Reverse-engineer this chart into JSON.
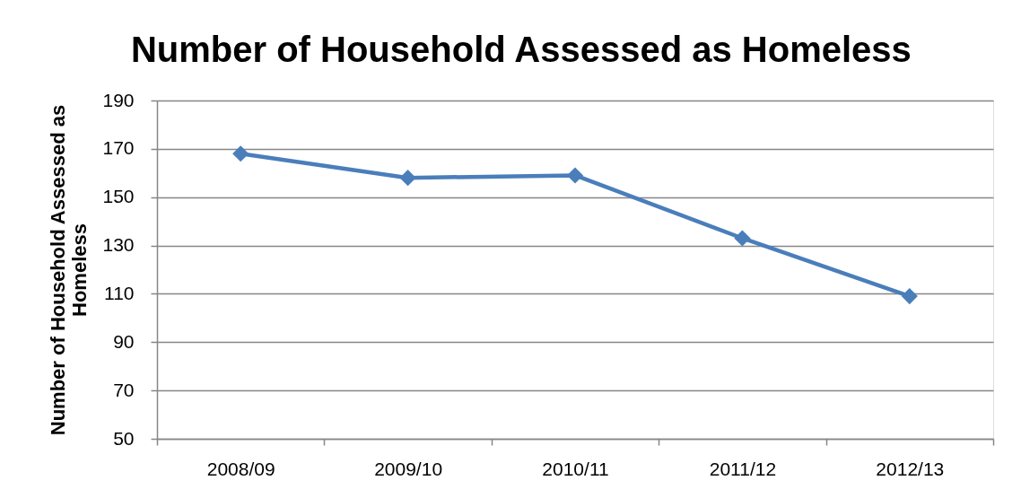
{
  "chart_data": {
    "type": "line",
    "title": "Number of Household Assessed as Homeless",
    "ylabel": "Number of Household Assessed as Homeless",
    "categories": [
      "2008/09",
      "2009/10",
      "2010/11",
      "2011/12",
      "2012/13"
    ],
    "series": [
      {
        "color": "#4a7ebb",
        "values": [
          168,
          158,
          159,
          133,
          109
        ]
      }
    ],
    "ylim": [
      50,
      190
    ],
    "yticks": [
      50,
      70,
      90,
      110,
      130,
      150,
      170,
      190
    ],
    "grid": "y",
    "marker": "diamond",
    "line_style": "solid"
  }
}
